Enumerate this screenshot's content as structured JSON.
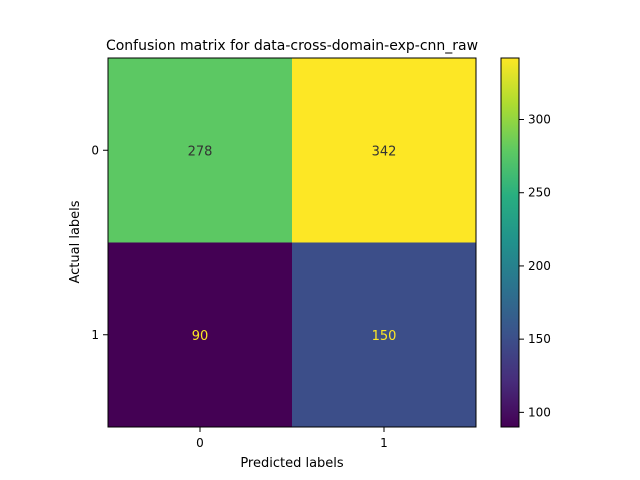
{
  "chart_data": {
    "type": "heatmap",
    "title": "Confusion matrix for data-cross-domain-exp-cnn_raw",
    "xlabel": "Predicted labels",
    "ylabel": "Actual labels",
    "x_categories": [
      "0",
      "1"
    ],
    "y_categories": [
      "0",
      "1"
    ],
    "values": [
      [
        278,
        342
      ],
      [
        90,
        150
      ]
    ],
    "colormap": "viridis",
    "colorbar": {
      "min": 90,
      "max": 342,
      "ticks": [
        100,
        150,
        200,
        250,
        300
      ]
    },
    "cell_text_colors": {
      "dark_background": "#fde725",
      "light_background": "#333333"
    }
  }
}
